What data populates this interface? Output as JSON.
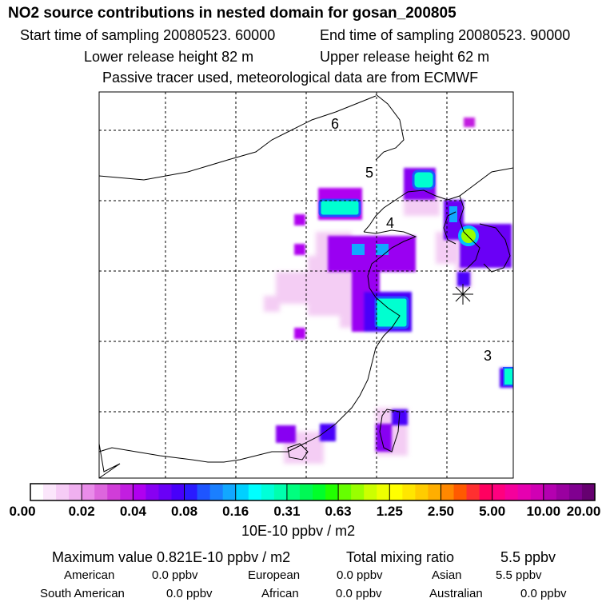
{
  "header": {
    "title": "NO2 source contributions in nested domain for gosan_200805",
    "start": "Start time of sampling 20080523. 60000",
    "end": "End time of sampling 20080523. 90000",
    "lower": "Lower release height   82 m",
    "upper": "Upper release height   62 m",
    "info": "Passive tracer used, meteorological data are from ECMWF"
  },
  "map": {
    "grid_labels": [
      "6",
      "5",
      "4",
      "3"
    ],
    "receptor_marker": "star-marker"
  },
  "colorbar": {
    "ticks": [
      "0.00",
      "0.02",
      "0.04",
      "0.08",
      "0.16",
      "0.31",
      "0.63",
      "1.25",
      "2.50",
      "5.00",
      "10.00",
      "20.00"
    ],
    "units": "10E-10 ppbv / m2",
    "colors": [
      "#ffffff",
      "#fbe6fb",
      "#f6ccf6",
      "#f0b0f0",
      "#e98ce9",
      "#dd66dd",
      "#d03dd8",
      "#c21ee0",
      "#b000f0",
      "#8800f2",
      "#6a00f6",
      "#4800fa",
      "#2a1aff",
      "#1e55ff",
      "#1a7fff",
      "#12a8ff",
      "#00d0ff",
      "#00ffff",
      "#00ffd8",
      "#00ffae",
      "#00ff7f",
      "#00f855",
      "#00ff2a",
      "#22ff00",
      "#66ff00",
      "#99ff00",
      "#ccff00",
      "#eeff00",
      "#ffff00",
      "#ffe600",
      "#ffcc00",
      "#ffae00",
      "#ff8800",
      "#ff5a00",
      "#ff3030",
      "#ff0060",
      "#ff007f",
      "#f5009c",
      "#e600b0",
      "#d000b4",
      "#b400b0",
      "#9a00a0",
      "#800090",
      "#660070"
    ]
  },
  "summary": {
    "max_label": "Maximum value  0.821E-10 ppbv / m2",
    "total_label": "Total mixing ratio",
    "total_value": "5.5 ppbv",
    "rows": [
      [
        [
          "American",
          "0.0 ppbv"
        ],
        [
          "European",
          "0.0 ppbv"
        ],
        [
          "Asian",
          "5.5 ppbv"
        ]
      ],
      [
        [
          "South American",
          "0.0 ppbv"
        ],
        [
          "African",
          "0.0 ppbv"
        ],
        [
          "Australian",
          "0.0 ppbv"
        ]
      ]
    ]
  }
}
